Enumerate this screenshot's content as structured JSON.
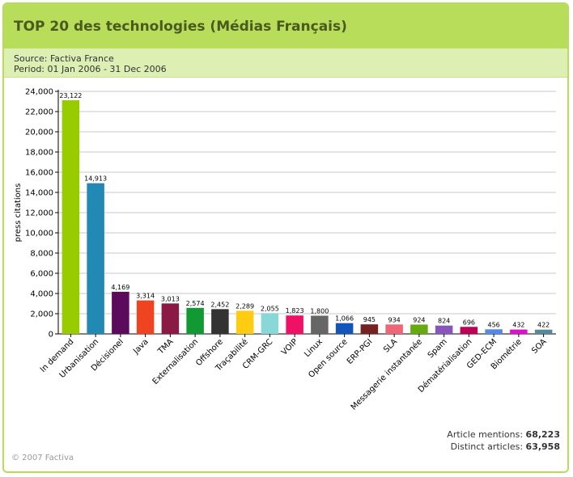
{
  "header": {
    "title": "TOP 20 des technologies (Médias Français)",
    "source": "Source: Factiva France",
    "period": "Period: 01 Jan 2006 - 31 Dec 2006"
  },
  "stats": {
    "article_mentions_label": "Article mentions:",
    "article_mentions_value": "68,223",
    "distinct_articles_label": "Distinct articles:",
    "distinct_articles_value": "63,958"
  },
  "footer": {
    "copyright": "© 2007 Factiva"
  },
  "chart_data": {
    "type": "bar",
    "title": "",
    "xlabel": "",
    "ylabel": "press citations",
    "ylim": [
      0,
      24000
    ],
    "yticks": [
      0,
      2000,
      4000,
      6000,
      8000,
      10000,
      12000,
      14000,
      16000,
      18000,
      20000,
      22000,
      24000
    ],
    "ytick_labels": [
      "0",
      "2,000",
      "4,000",
      "6,000",
      "8,000",
      "10,000",
      "12,000",
      "14,000",
      "16,000",
      "18,000",
      "20,000",
      "22,000",
      "24,000"
    ],
    "grid": true,
    "categories": [
      "In demand",
      "Urbanisation",
      "Décisionel",
      "Java",
      "TMA",
      "Externalisation",
      "Offshore",
      "Traçabilité",
      "CRM-GRC",
      "VOIP",
      "Linux",
      "Open source",
      "ERP-PGI",
      "SLA",
      "Messagerie instantanée",
      "Spam",
      "Dématérialisation",
      "GED-ECM",
      "Biométrie",
      "SOA"
    ],
    "values": [
      23122,
      14913,
      4169,
      3314,
      3013,
      2574,
      2452,
      2289,
      2055,
      1823,
      1800,
      1066,
      945,
      934,
      924,
      824,
      696,
      456,
      432,
      422
    ],
    "value_labels": [
      "23,122",
      "14,913",
      "4,169",
      "3,314",
      "3,013",
      "2,574",
      "2,452",
      "2,289",
      "2,055",
      "1,823",
      "1,800",
      "1,066",
      "945",
      "934",
      "924",
      "824",
      "696",
      "456",
      "432",
      "422"
    ],
    "colors": [
      "#99cc00",
      "#2288b4",
      "#5c0a5c",
      "#ee4422",
      "#8a1a44",
      "#119933",
      "#333333",
      "#ffcc11",
      "#88d8d8",
      "#ee1166",
      "#666666",
      "#1155bb",
      "#772222",
      "#ee6677",
      "#66aa11",
      "#8855bb",
      "#bb0055",
      "#5588ee",
      "#dd11cc",
      "#558899"
    ]
  }
}
